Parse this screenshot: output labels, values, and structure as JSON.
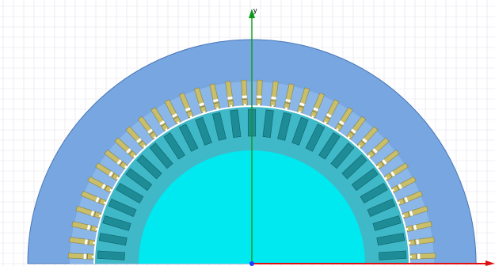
{
  "viewport": {
    "y_axis_label": "y"
  },
  "model": {
    "stator_slot_count": 72,
    "rotor_slot_count": 54
  },
  "colors": {
    "background": "#ffffff",
    "grid_fine": "#e2e2ee",
    "grid_major": "#c9c9d9",
    "stator_core": "#78a6e0",
    "stator_outline": "#4a78b8",
    "stator_inner": "#8ab6e8",
    "winding": "#c9bf6a",
    "winding_outline": "#8a8040",
    "winding_gap": "#ffffff",
    "air_gap": "#ffffff",
    "rotor_core": "#3fb8c8",
    "rotor_bar": "#1d8c96",
    "rotor_bar_outline": "#0f6066",
    "shaft": "#00e8f0",
    "y_axis": "#0a9a18",
    "x_axis": "#e01010",
    "origin": "#1e3cff"
  }
}
